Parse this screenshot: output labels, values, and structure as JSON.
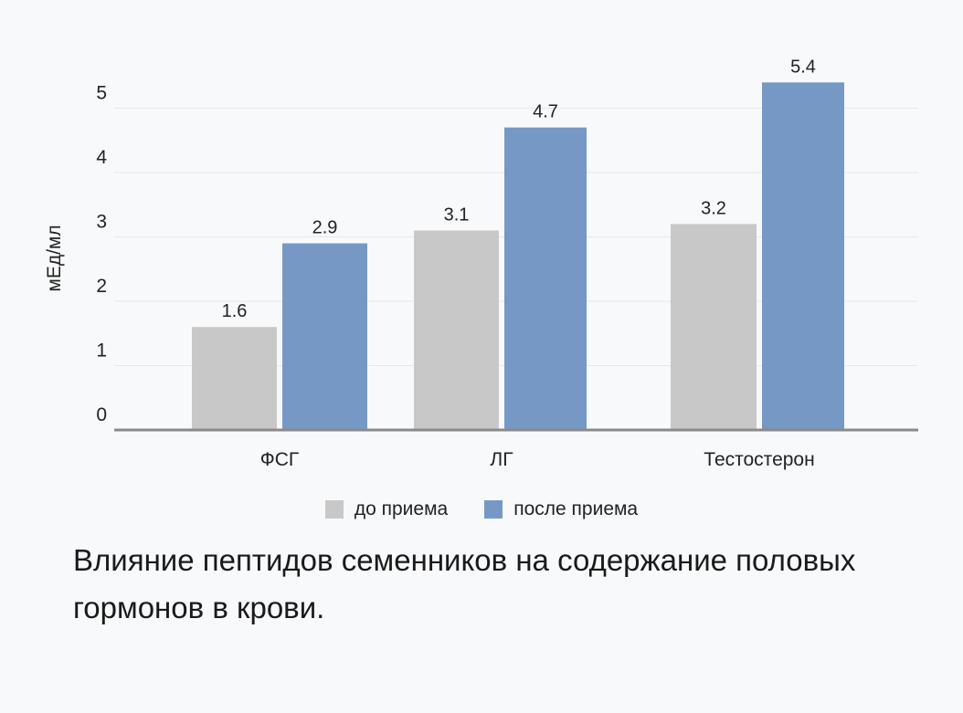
{
  "chart_data": {
    "type": "bar",
    "categories": [
      "ФСГ",
      "ЛГ",
      "Тестостерон"
    ],
    "series": [
      {
        "name": "до приема",
        "values": [
          1.6,
          3.1,
          3.2
        ],
        "labels": [
          "1.6",
          "3.1",
          "3.2"
        ],
        "color": "#c8c8c8"
      },
      {
        "name": "после приема",
        "values": [
          2.9,
          4.7,
          5.4
        ],
        "labels": [
          "2.9",
          "4.7",
          "5.4"
        ],
        "color": "#7599c4"
      }
    ],
    "ylabel": "мЕд/мл",
    "ylim": [
      0,
      5.4
    ],
    "yticks": [
      0,
      1,
      2,
      3,
      4,
      5
    ],
    "grid": true,
    "legend_position": "bottom"
  },
  "caption": "Влияние пептидов семенников на содержание половых гормонов в крови."
}
